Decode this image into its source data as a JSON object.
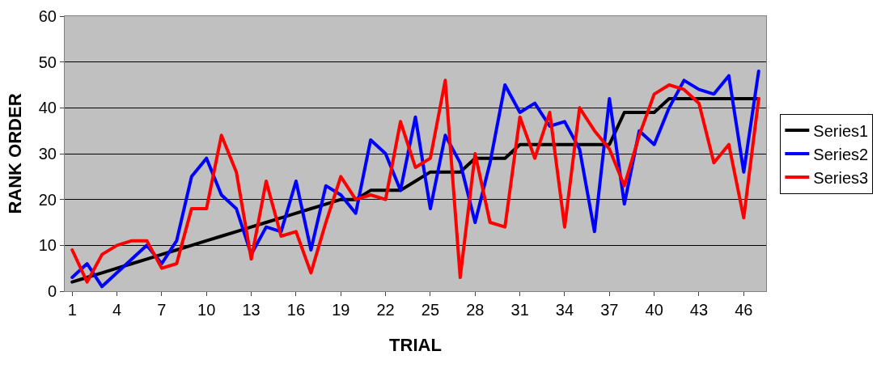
{
  "chart_data": {
    "type": "line",
    "xlabel": "TRIAL",
    "ylabel": "RANK ORDER",
    "categories": [
      "1",
      null,
      null,
      "4",
      null,
      null,
      "7",
      null,
      null,
      "10",
      null,
      null,
      "13",
      null,
      null,
      "16",
      null,
      null,
      "19",
      null,
      null,
      "22",
      null,
      null,
      "25",
      null,
      null,
      "28",
      null,
      null,
      "31",
      null,
      null,
      "34",
      null,
      null,
      "37",
      null,
      null,
      "40",
      null,
      null,
      "43",
      null,
      null,
      "46",
      null
    ],
    "series": [
      {
        "name": "Series1",
        "color": "#000000",
        "values": [
          2,
          3,
          4,
          5,
          6,
          7,
          8,
          9,
          10,
          11,
          12,
          13,
          14,
          15,
          16,
          17,
          18,
          19,
          20,
          20,
          22,
          22,
          22,
          24,
          26,
          26,
          26,
          29,
          29,
          29,
          32,
          32,
          32,
          32,
          32,
          32,
          32,
          39,
          39,
          39,
          42,
          42,
          42,
          42,
          42,
          42,
          42
        ]
      },
      {
        "name": "Series2",
        "color": "#0000ff",
        "values": [
          3,
          6,
          1,
          4,
          7,
          10,
          6,
          11,
          25,
          29,
          21,
          18,
          8,
          14,
          13,
          24,
          9,
          23,
          21,
          17,
          33,
          30,
          22,
          38,
          18,
          34,
          28,
          15,
          28,
          45,
          39,
          41,
          36,
          37,
          31,
          13,
          42,
          19,
          35,
          32,
          40,
          46,
          44,
          43,
          47,
          26,
          48
        ]
      },
      {
        "name": "Series3",
        "color": "#ff0000",
        "values": [
          9,
          2,
          8,
          10,
          11,
          11,
          5,
          6,
          18,
          18,
          34,
          26,
          7,
          24,
          12,
          13,
          4,
          15,
          25,
          20,
          21,
          20,
          37,
          27,
          29,
          46,
          3,
          30,
          15,
          14,
          38,
          29,
          39,
          14,
          40,
          35,
          31,
          23,
          34,
          43,
          45,
          44,
          41,
          28,
          32,
          16,
          42
        ]
      }
    ],
    "ylim": [
      0,
      60
    ],
    "yticks": [
      0,
      10,
      20,
      30,
      40,
      50,
      60
    ],
    "grid": "y",
    "legend": "right",
    "marker": "none",
    "line_style": "solid"
  }
}
